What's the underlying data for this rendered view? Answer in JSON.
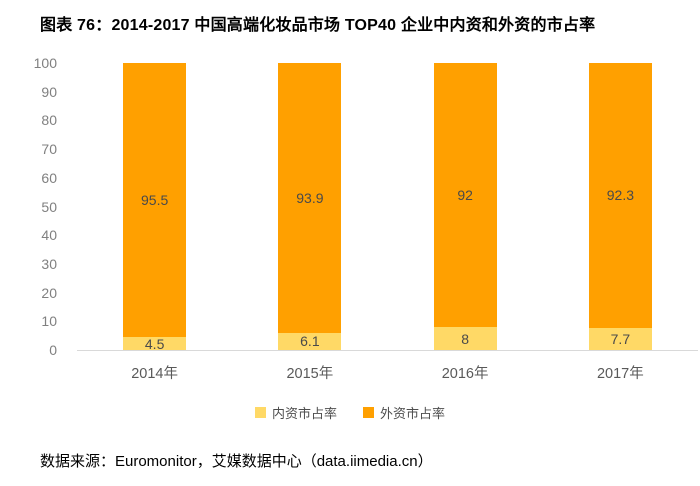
{
  "title": "图表 76：2014-2017 中国高端化妆品市场 TOP40 企业中内资和外资的市占率",
  "source": "数据来源：Euromonitor，艾媒数据中心（data.iimedia.cn）",
  "colors": {
    "domestic_yellow": "#FFD966",
    "foreign_orange": "#FFA000",
    "axis_text": "#808080",
    "data_label_text": "#4a4a4a",
    "baseline": "#d9d9d9"
  },
  "chart_data": {
    "type": "bar",
    "stacked": true,
    "title": "图表 76：2014-2017 中国高端化妆品市场 TOP40 企业中内资和外资的市占率",
    "categories": [
      "2014年",
      "2015年",
      "2016年",
      "2017年"
    ],
    "series": [
      {
        "name": "内资市占率",
        "color": "#FFD966",
        "values": [
          4.5,
          6.1,
          8,
          7.7
        ]
      },
      {
        "name": "外资市占率",
        "color": "#FFA000",
        "values": [
          95.5,
          93.9,
          92,
          92.3
        ]
      }
    ],
    "xlabel": "",
    "ylabel": "",
    "ylim": [
      0,
      100
    ],
    "yticks": [
      0,
      10,
      20,
      30,
      40,
      50,
      60,
      70,
      80,
      90,
      100
    ],
    "grid": false,
    "legend_position": "bottom"
  }
}
